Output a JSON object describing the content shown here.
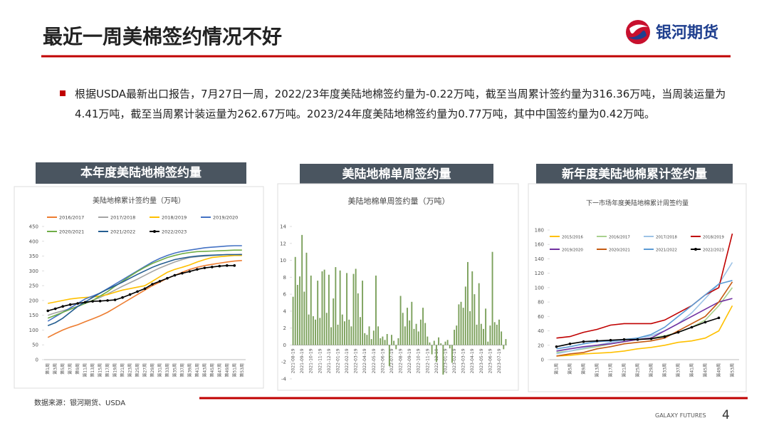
{
  "header": {
    "title": "最近一周美棉签约情况不好",
    "logo": "银河期货"
  },
  "bullet": "根据USDA最新出口报告，7月27日一周，2022/23年度美陆地棉签约量为-0.22万吨，截至当周累计签约量为316.36万吨，当周装运量为4.41万吨，截至当周累计装运量为262.67万吨。2023/24年度美陆地棉签约量为0.77万吨，其中中国签约量为0.42万吨。",
  "panels": [
    "本年度美陆地棉签约量",
    "美陆地棉单周签约量",
    "新年度美陆地棉累计签约量"
  ],
  "footer": {
    "source": "数据来源：银河期货、USDA",
    "brand": "GALAXY FUTURES",
    "page": 4
  },
  "chart_data": [
    {
      "type": "line",
      "title": "美陆地棉累计签约量（万吨）",
      "categories": [
        "第1周",
        "第3周",
        "第5周",
        "第7周",
        "第9周",
        "第11周",
        "第13周",
        "第15周",
        "第17周",
        "第19周",
        "第21周",
        "第23周",
        "第25周",
        "第27周",
        "第29周",
        "第31周",
        "第33周",
        "第35周",
        "第37周",
        "第39周",
        "第41周",
        "第43周",
        "第45周",
        "第47周",
        "第49周",
        "第51周",
        "第53周"
      ],
      "ylim": [
        0,
        450
      ],
      "yticks": [
        0,
        50,
        100,
        150,
        200,
        250,
        300,
        350,
        400,
        450
      ],
      "grid": false,
      "series": [
        {
          "name": "2016/2017",
          "color": "#ed7d31",
          "values": [
            75,
            88,
            100,
            110,
            118,
            128,
            138,
            148,
            160,
            175,
            190,
            205,
            220,
            235,
            250,
            262,
            275,
            285,
            295,
            305,
            312,
            318,
            322,
            326,
            330,
            333,
            335
          ]
        },
        {
          "name": "2017/2018",
          "color": "#a5a5a5",
          "values": [
            150,
            158,
            165,
            172,
            180,
            190,
            200,
            210,
            222,
            235,
            248,
            260,
            272,
            285,
            298,
            310,
            320,
            330,
            338,
            345,
            348,
            350,
            352,
            354,
            355,
            355,
            356
          ]
        },
        {
          "name": "2018/2019",
          "color": "#ffc000",
          "values": [
            190,
            195,
            200,
            205,
            208,
            210,
            212,
            215,
            220,
            228,
            235,
            240,
            245,
            250,
            265,
            280,
            295,
            305,
            312,
            320,
            330,
            338,
            345,
            348,
            350,
            352,
            352
          ]
        },
        {
          "name": "2019/2020",
          "color": "#4472c4",
          "values": [
            130,
            145,
            160,
            175,
            190,
            205,
            215,
            225,
            240,
            255,
            270,
            285,
            300,
            315,
            330,
            342,
            352,
            360,
            366,
            370,
            374,
            378,
            380,
            382,
            384,
            385,
            385
          ]
        },
        {
          "name": "2020/2021",
          "color": "#70ad47",
          "values": [
            140,
            150,
            160,
            170,
            180,
            190,
            200,
            215,
            230,
            248,
            265,
            282,
            298,
            312,
            325,
            335,
            345,
            352,
            358,
            362,
            365,
            366,
            367,
            368,
            369,
            370,
            370
          ]
        },
        {
          "name": "2021/2022",
          "color": "#255e91",
          "values": [
            115,
            125,
            140,
            160,
            180,
            195,
            210,
            225,
            238,
            250,
            262,
            275,
            288,
            300,
            312,
            322,
            330,
            338,
            343,
            347,
            350,
            352,
            353,
            354,
            355,
            355,
            355
          ]
        },
        {
          "name": "2022/2023",
          "color": "#000000",
          "markers": true,
          "values": [
            165,
            172,
            180,
            186,
            190,
            194,
            197,
            198,
            200,
            202,
            210,
            220,
            230,
            240,
            255,
            265,
            275,
            285,
            292,
            298,
            305,
            310,
            313,
            316,
            318,
            318,
            null
          ]
        }
      ]
    },
    {
      "type": "bar",
      "title": "美陆地棉单周签约量（万吨）",
      "color": "#7ba05b",
      "categories": [
        "2021-08-19",
        null,
        null,
        null,
        "2021-09-19",
        null,
        null,
        null,
        "2021-10-19",
        null,
        null,
        null,
        "2021-11-19",
        null,
        null,
        null,
        "2021-12-19",
        null,
        null,
        null,
        "2022-01-19",
        null,
        null,
        null,
        "2022-02-19",
        null,
        null,
        null,
        "2022-03-19",
        null,
        null,
        null,
        "2022-04-19",
        null,
        null,
        null,
        "2022-05-19",
        null,
        null,
        null,
        "2022-06-19",
        null,
        null,
        null,
        "2022-07-19",
        null,
        null,
        null,
        "2022-08-19",
        null,
        null,
        null,
        "2022-09-19",
        null,
        null,
        null,
        "2022-10-19",
        null,
        null,
        null,
        "2022-11-19",
        null,
        null,
        null,
        "2022-12-19",
        null,
        null,
        null,
        "2023-01-19",
        null,
        null,
        null,
        "2023-02-19",
        null,
        null,
        null,
        "2023-03-19",
        null,
        null,
        null,
        "2023-04-19",
        null,
        null,
        null,
        "2023-05-19",
        null,
        null,
        null,
        "2023-06-19",
        null,
        null,
        null,
        "2023-07-19",
        null,
        null,
        null
      ],
      "values": [
        5.7,
        10.4,
        7.1,
        8.1,
        13,
        6.3,
        10.9,
        3.6,
        8.2,
        3.4,
        3.0,
        7.6,
        3.2,
        8.7,
        8.9,
        3.8,
        8.3,
        2.1,
        5.5,
        9.2,
        2.4,
        8.8,
        3.6,
        2.8,
        8.5,
        3.0,
        2.2,
        8.4,
        9.0,
        6.1,
        3.3,
        7.6,
        1.4,
        1.2,
        2.2,
        0.7,
        1.7,
        8.2,
        2.2,
        0.8,
        1.0,
        0.6,
        1.3,
        -2.5,
        1.2,
        0.5,
        -0.5,
        0.8,
        5.8,
        3.8,
        2.2,
        4.4,
        2.9,
        5.1,
        1.9,
        2.5,
        1.6,
        3.0,
        4.4,
        2.6,
        1.0,
        0.3,
        -1.1,
        0.5,
        -2.0,
        0.9,
        0.2,
        -3.5,
        0.4,
        0.6,
        -0.4,
        -2.1,
        1.8,
        2.3,
        4.8,
        5.1,
        4.4,
        6.9,
        9.8,
        4.0,
        8.7,
        6.0,
        2.4,
        7.3,
        2.5,
        1.9,
        4.3,
        0.4,
        2.3,
        11.0,
        2.7,
        2.4,
        3.0,
        1.6,
        -0.5,
        0.7
      ],
      "ylim": [
        -4,
        14
      ],
      "yticks": [
        -4,
        -2,
        0,
        2,
        4,
        6,
        8,
        10,
        12,
        14
      ],
      "grid": false
    },
    {
      "type": "line",
      "title": "下一市场年度美陆地棉累计周签约量",
      "categories": [
        "第1周",
        "第5周",
        "第9周",
        "第13周",
        "第17周",
        "第21周",
        "第25周",
        "第29周",
        "第33周",
        "第37周",
        "第41周",
        "第45周",
        "第49周",
        "第53周"
      ],
      "ylim": [
        0,
        180
      ],
      "yticks": [
        0,
        20,
        40,
        60,
        80,
        100,
        120,
        140,
        160,
        180
      ],
      "grid": false,
      "series": [
        {
          "name": "2015/2016",
          "color": "#ffc000",
          "values": [
            5,
            6,
            8,
            9,
            10,
            12,
            15,
            17,
            20,
            24,
            26,
            30,
            40,
            75
          ]
        },
        {
          "name": "2016/2017",
          "color": "#a9d18e",
          "values": [
            10,
            12,
            15,
            18,
            22,
            25,
            28,
            30,
            33,
            38,
            45,
            55,
            75,
            100
          ]
        },
        {
          "name": "2017/2018",
          "color": "#9dc3e6",
          "values": [
            8,
            12,
            16,
            20,
            24,
            27,
            30,
            33,
            40,
            50,
            65,
            85,
            105,
            135
          ]
        },
        {
          "name": "2018/2019",
          "color": "#c00000",
          "values": [
            30,
            32,
            38,
            42,
            48,
            50,
            50,
            50,
            55,
            65,
            75,
            90,
            100,
            175
          ]
        },
        {
          "name": "2019/2020",
          "color": "#7030a0",
          "values": [
            12,
            15,
            18,
            20,
            22,
            25,
            28,
            30,
            40,
            50,
            60,
            70,
            80,
            85
          ]
        },
        {
          "name": "2020/2021",
          "color": "#c55a11",
          "values": [
            5,
            8,
            10,
            15,
            18,
            22,
            24,
            26,
            30,
            40,
            50,
            60,
            80,
            108
          ]
        },
        {
          "name": "2021/2022",
          "color": "#5b9bd5",
          "values": [
            15,
            18,
            22,
            25,
            26,
            28,
            30,
            35,
            45,
            60,
            75,
            90,
            105,
            110
          ]
        },
        {
          "name": "2022/2023",
          "color": "#000000",
          "markers": true,
          "values": [
            18,
            22,
            25,
            26,
            27,
            28,
            28,
            29,
            32,
            38,
            45,
            52,
            58,
            null
          ]
        }
      ]
    }
  ]
}
